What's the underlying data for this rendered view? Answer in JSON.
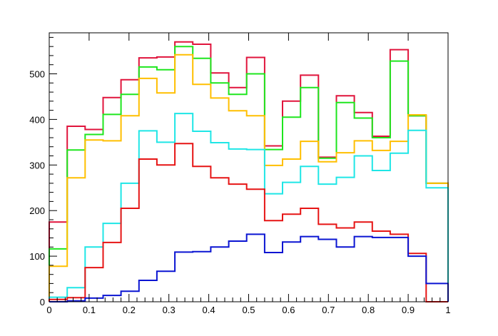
{
  "chart_data": {
    "type": "histogram",
    "title": "",
    "xlabel": "",
    "ylabel": "",
    "xlim": [
      0,
      1
    ],
    "ylim": [
      0,
      590
    ],
    "grid": false,
    "legend": "none",
    "bin_edges": [
      0,
      0.045,
      0.09,
      0.135,
      0.18,
      0.225,
      0.27,
      0.315,
      0.36,
      0.405,
      0.45,
      0.495,
      0.54,
      0.585,
      0.63,
      0.675,
      0.72,
      0.765,
      0.81,
      0.855,
      0.9,
      0.945,
      1.0
    ],
    "x_ticks": [
      "0",
      "0.1",
      "0.2",
      "0.3",
      "0.4",
      "0.5",
      "0.6",
      "0.7",
      "0.8",
      "0.9",
      "1"
    ],
    "x_tick_values": [
      0,
      0.1,
      0.2,
      0.3,
      0.4,
      0.5,
      0.6,
      0.7,
      0.8,
      0.9,
      1.0
    ],
    "y_ticks": [
      "0",
      "100",
      "200",
      "300",
      "400",
      "500"
    ],
    "y_tick_values": [
      0,
      100,
      200,
      300,
      400,
      500
    ],
    "series": [
      {
        "name": "crimson",
        "color": "#e0143c",
        "values": [
          175,
          385,
          378,
          448,
          487,
          535,
          537,
          570,
          565,
          502,
          470,
          536,
          342,
          440,
          497,
          317,
          452,
          415,
          363,
          553,
          408,
          260
        ]
      },
      {
        "name": "green",
        "color": "#1ee61e",
        "values": [
          116,
          333,
          367,
          411,
          455,
          515,
          509,
          560,
          534,
          480,
          455,
          500,
          334,
          405,
          470,
          315,
          437,
          403,
          360,
          528,
          408,
          260
        ]
      },
      {
        "name": "orange",
        "color": "#ffbf00",
        "values": [
          78,
          272,
          355,
          353,
          408,
          490,
          458,
          542,
          477,
          447,
          419,
          408,
          299,
          313,
          352,
          307,
          327,
          353,
          332,
          352,
          410,
          260
        ]
      },
      {
        "name": "cyan",
        "color": "#1fe6e6",
        "values": [
          10,
          31,
          120,
          172,
          260,
          375,
          350,
          413,
          374,
          349,
          335,
          334,
          237,
          262,
          297,
          258,
          273,
          320,
          288,
          326,
          376,
          250
        ]
      },
      {
        "name": "red",
        "color": "#e61414",
        "values": [
          5,
          9,
          75,
          130,
          205,
          313,
          300,
          347,
          297,
          272,
          258,
          247,
          178,
          192,
          205,
          170,
          162,
          175,
          155,
          148,
          106,
          0
        ]
      },
      {
        "name": "blue",
        "color": "#0a14d2",
        "values": [
          0,
          2,
          8,
          14,
          23,
          47,
          67,
          109,
          110,
          120,
          133,
          148,
          108,
          131,
          143,
          137,
          120,
          143,
          141,
          141,
          100,
          40
        ]
      }
    ]
  }
}
